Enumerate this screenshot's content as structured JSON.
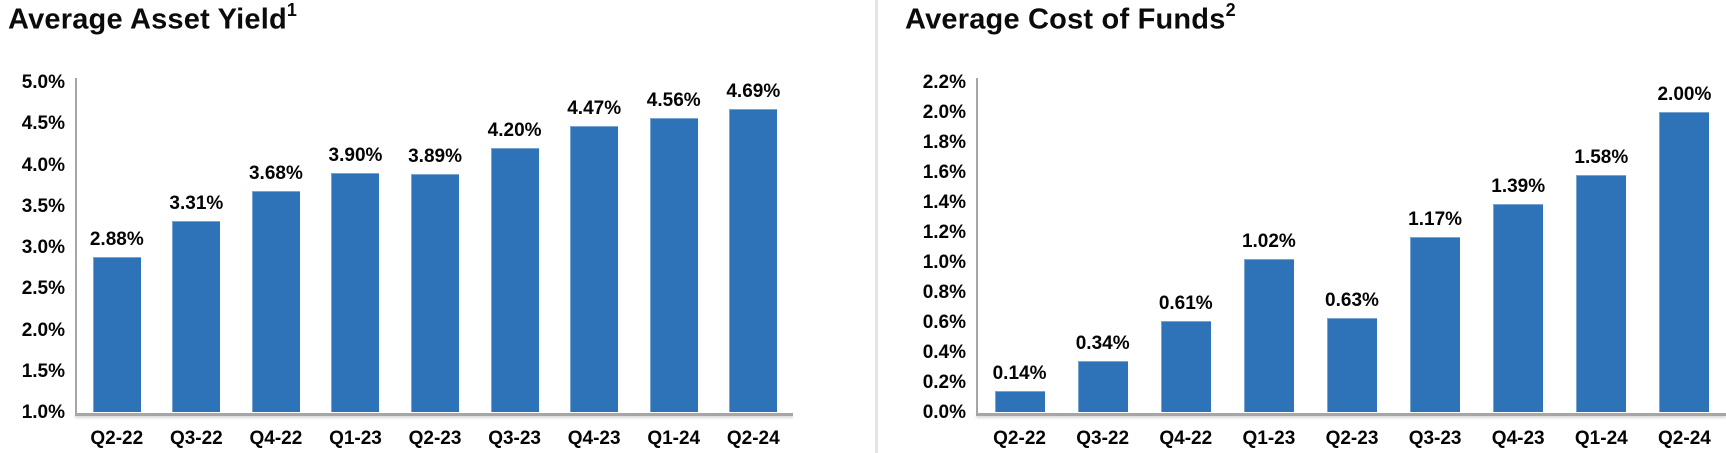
{
  "page": {
    "background_color": "#ffffff",
    "divider_color": "#e4e4e4",
    "axis_line_color": "#a6a6a6",
    "text_color": "#040404"
  },
  "chart_data": [
    {
      "type": "bar",
      "title": "Average Asset Yield",
      "title_superscript": "1",
      "categories": [
        "Q2-22",
        "Q3-22",
        "Q4-22",
        "Q1-23",
        "Q2-23",
        "Q3-23",
        "Q4-23",
        "Q1-24",
        "Q2-24"
      ],
      "values": [
        2.88,
        3.31,
        3.68,
        3.9,
        3.89,
        4.2,
        4.47,
        4.56,
        4.69
      ],
      "data_labels": [
        "2.88%",
        "3.31%",
        "3.68%",
        "3.90%",
        "3.89%",
        "4.20%",
        "4.47%",
        "4.56%",
        "4.69%"
      ],
      "ylim": [
        1.0,
        5.0
      ],
      "ytick_step": 0.5,
      "ytick_labels": [
        "5.0%",
        "4.5%",
        "4.0%",
        "3.5%",
        "3.0%",
        "2.5%",
        "2.0%",
        "1.5%",
        "1.0%"
      ],
      "xlabel": "",
      "ylabel": "",
      "grid": false,
      "legend": "none",
      "bar_color": "#2e73b8"
    },
    {
      "type": "bar",
      "title": "Average Cost of Funds",
      "title_superscript": "2",
      "categories": [
        "Q2-22",
        "Q3-22",
        "Q4-22",
        "Q1-23",
        "Q2-23",
        "Q3-23",
        "Q4-23",
        "Q1-24",
        "Q2-24"
      ],
      "values": [
        0.14,
        0.34,
        0.61,
        1.02,
        0.63,
        1.17,
        1.39,
        1.58,
        2.0
      ],
      "data_labels": [
        "0.14%",
        "0.34%",
        "0.61%",
        "1.02%",
        "0.63%",
        "1.17%",
        "1.39%",
        "1.58%",
        "2.00%"
      ],
      "ylim": [
        0.0,
        2.2
      ],
      "ytick_step": 0.2,
      "ytick_labels": [
        "2.2%",
        "2.0%",
        "1.8%",
        "1.6%",
        "1.4%",
        "1.2%",
        "1.0%",
        "0.8%",
        "0.6%",
        "0.4%",
        "0.2%",
        "0.0%"
      ],
      "xlabel": "",
      "ylabel": "",
      "grid": false,
      "legend": "none",
      "bar_color": "#2e73b8"
    }
  ]
}
